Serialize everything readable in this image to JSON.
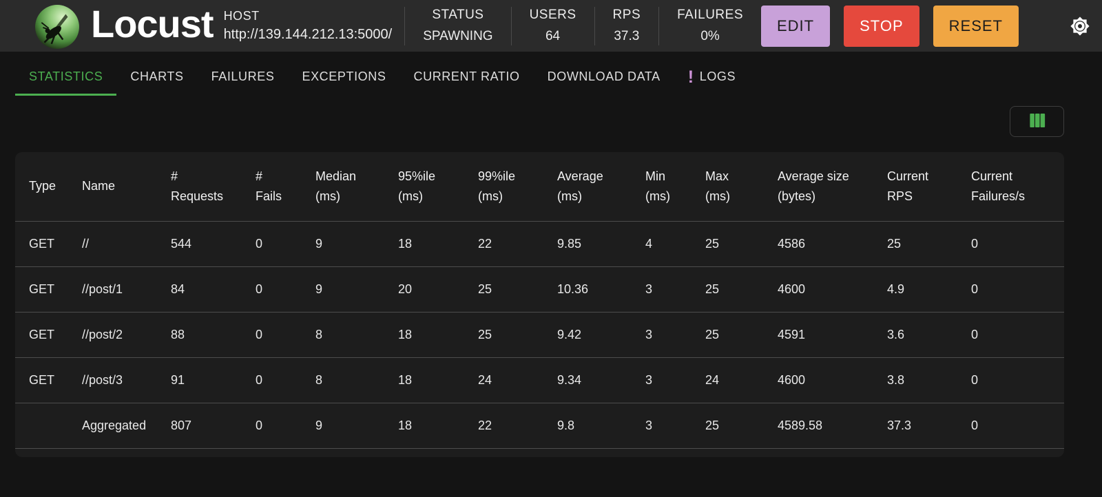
{
  "header": {
    "brand": "Locust",
    "host": {
      "label": "HOST",
      "value": "http://139.144.212.13:5000/"
    },
    "stats": [
      {
        "id": "status",
        "label": "STATUS",
        "value": "SPAWNING"
      },
      {
        "id": "users",
        "label": "USERS",
        "value": "64"
      },
      {
        "id": "rps",
        "label": "RPS",
        "value": "37.3"
      },
      {
        "id": "failures",
        "label": "FAILURES",
        "value": "0%"
      }
    ],
    "buttons": [
      {
        "id": "edit",
        "label": "EDIT"
      },
      {
        "id": "stop",
        "label": "STOP"
      },
      {
        "id": "reset",
        "label": "RESET"
      }
    ],
    "icons": {
      "settings": "gear-icon",
      "logo": "locust-logo-icon"
    }
  },
  "tabs": [
    {
      "id": "statistics",
      "label": "STATISTICS",
      "active": true
    },
    {
      "id": "charts",
      "label": "CHARTS"
    },
    {
      "id": "failures",
      "label": "FAILURES"
    },
    {
      "id": "exceptions",
      "label": "EXCEPTIONS"
    },
    {
      "id": "current-ratio",
      "label": "CURRENT RATIO"
    },
    {
      "id": "download-data",
      "label": "DOWNLOAD DATA"
    },
    {
      "id": "logs",
      "label": "LOGS",
      "badge": "!"
    }
  ],
  "toolbar": {
    "column_selector_icon": "columns-icon"
  },
  "table": {
    "columns": [
      {
        "line1": "Type",
        "line2": ""
      },
      {
        "line1": "Name",
        "line2": ""
      },
      {
        "line1": "#",
        "line2": "Requests"
      },
      {
        "line1": "#",
        "line2": "Fails"
      },
      {
        "line1": "Median",
        "line2": "(ms)"
      },
      {
        "line1": "95%ile",
        "line2": "(ms)"
      },
      {
        "line1": "99%ile",
        "line2": "(ms)"
      },
      {
        "line1": "Average",
        "line2": "(ms)"
      },
      {
        "line1": "Min",
        "line2": "(ms)"
      },
      {
        "line1": "Max",
        "line2": "(ms)"
      },
      {
        "line1": "Average size",
        "line2": "(bytes)"
      },
      {
        "line1": "Current",
        "line2": "RPS"
      },
      {
        "line1": "Current",
        "line2": "Failures/s"
      }
    ],
    "rows": [
      {
        "cells": [
          "GET",
          "//",
          "544",
          "0",
          "9",
          "18",
          "22",
          "9.85",
          "4",
          "25",
          "4586",
          "25",
          "0"
        ]
      },
      {
        "cells": [
          "GET",
          "//post/1",
          "84",
          "0",
          "9",
          "20",
          "25",
          "10.36",
          "3",
          "25",
          "4600",
          "4.9",
          "0"
        ]
      },
      {
        "cells": [
          "GET",
          "//post/2",
          "88",
          "0",
          "8",
          "18",
          "25",
          "9.42",
          "3",
          "25",
          "4591",
          "3.6",
          "0"
        ]
      },
      {
        "cells": [
          "GET",
          "//post/3",
          "91",
          "0",
          "8",
          "18",
          "24",
          "9.34",
          "3",
          "24",
          "4600",
          "3.8",
          "0"
        ]
      },
      {
        "cells": [
          "",
          "Aggregated",
          "807",
          "0",
          "9",
          "18",
          "22",
          "9.8",
          "3",
          "25",
          "4589.58",
          "37.3",
          "0"
        ]
      }
    ]
  },
  "colors": {
    "accent_green": "#4caf50",
    "edit_bg": "#c8a1d9",
    "stop_bg": "#e5493d",
    "reset_bg": "#f0a643",
    "logs_badge": "#ce93d8"
  }
}
